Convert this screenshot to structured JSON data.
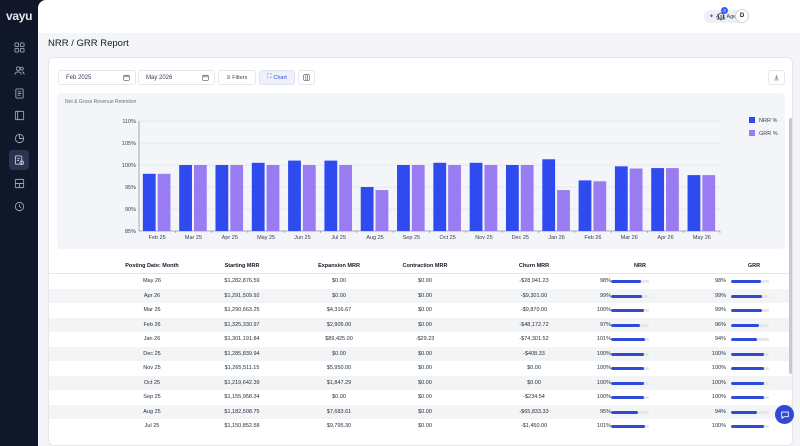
{
  "app": {
    "logo": "vayu",
    "page_title": "NRR / GRR Report"
  },
  "topbar": {
    "ask_agent_label": "Ask Agent",
    "notification_count": "4",
    "avatar_initial": "D"
  },
  "sidebar": {
    "items": [
      {
        "name": "dashboard",
        "icon": "grid-icon"
      },
      {
        "name": "customers",
        "icon": "users-icon"
      },
      {
        "name": "invoices",
        "icon": "document-icon"
      },
      {
        "name": "contracts",
        "icon": "book-icon"
      },
      {
        "name": "analytics",
        "icon": "pie-chart-icon"
      },
      {
        "name": "reports",
        "icon": "report-icon",
        "active": true
      },
      {
        "name": "products",
        "icon": "layout-icon"
      },
      {
        "name": "settings",
        "icon": "clock-icon"
      }
    ]
  },
  "toolbar": {
    "start_date": "Feb 2025",
    "end_date": "May 2026",
    "filters_label": "Filters",
    "chart_label": "Chart"
  },
  "chart_data": {
    "type": "bar",
    "title": "Net & Gross Revenue Retention",
    "categories": [
      "Feb 25",
      "Mar 25",
      "Apr 25",
      "May 25",
      "Jun 25",
      "Jul 25",
      "Aug 25",
      "Sep 25",
      "Oct 25",
      "Nov 25",
      "Dec 25",
      "Jan 26",
      "Feb 26",
      "Mar 26",
      "Apr 26",
      "May 26"
    ],
    "series": [
      {
        "name": "NRR %",
        "color": "#2f4bf0",
        "values": [
          98,
          100,
          100,
          100.5,
          101,
          101,
          95,
          100,
          100.5,
          100.5,
          100,
          101.3,
          96.5,
          99.7,
          99.3,
          97.7
        ]
      },
      {
        "name": "GRR %",
        "color": "#9a7cf2",
        "values": [
          98,
          100,
          100,
          100,
          100,
          100,
          94.3,
          100,
          100,
          100,
          100,
          94.3,
          96.3,
          99.2,
          99.3,
          97.7
        ]
      }
    ],
    "ylim": [
      85,
      110
    ],
    "yticks": [
      "85%",
      "90%",
      "95%",
      "100%",
      "105%",
      "110%"
    ],
    "ytick_values": [
      85,
      90,
      95,
      100,
      105,
      110
    ],
    "legend_position": "top-right",
    "grid": true
  },
  "table": {
    "headers": [
      "Posting Date: Month",
      "Starting MRR",
      "Expansion MRR",
      "Contraction MRR",
      "Churn MRR",
      "NRR",
      "GRR"
    ],
    "rows": [
      {
        "month": "May 26",
        "starting": "$1,282,876.59",
        "expansion": "$0.00",
        "contraction": "$0.00",
        "churn": "-$28,941.23",
        "nrr": "98%",
        "nrr_v": 0.98,
        "grr": "98%",
        "grr_v": 0.98
      },
      {
        "month": "Apr 26",
        "starting": "$1,291,509.92",
        "expansion": "$0.00",
        "contraction": "$0.00",
        "churn": "-$9,301.00",
        "nrr": "99%",
        "nrr_v": 0.99,
        "grr": "99%",
        "grr_v": 0.99
      },
      {
        "month": "Mar 26",
        "starting": "$1,290,663.25",
        "expansion": "$4,316.67",
        "contraction": "$0.00",
        "churn": "-$9,870.00",
        "nrr": "100%",
        "nrr_v": 1.0,
        "grr": "99%",
        "grr_v": 0.99
      },
      {
        "month": "Feb 26",
        "starting": "$1,325,330.97",
        "expansion": "$2,905.00",
        "contraction": "$0.00",
        "churn": "-$48,172.72",
        "nrr": "97%",
        "nrr_v": 0.97,
        "grr": "96%",
        "grr_v": 0.96
      },
      {
        "month": "Jan 26",
        "starting": "$1,301,191.84",
        "expansion": "$89,425.00",
        "contraction": "-$29.23",
        "churn": "-$74,301.52",
        "nrr": "101%",
        "nrr_v": 1.01,
        "grr": "94%",
        "grr_v": 0.94
      },
      {
        "month": "Dec 25",
        "starting": "$1,285,839.94",
        "expansion": "$0.00",
        "contraction": "$0.00",
        "churn": "-$408.33",
        "nrr": "100%",
        "nrr_v": 1.0,
        "grr": "100%",
        "grr_v": 1.0
      },
      {
        "month": "Nov 25",
        "starting": "$1,265,511.15",
        "expansion": "$5,950.00",
        "contraction": "$0.00",
        "churn": "$0.00",
        "nrr": "100%",
        "nrr_v": 1.0,
        "grr": "100%",
        "grr_v": 1.0
      },
      {
        "month": "Oct 25",
        "starting": "$1,219,642.39",
        "expansion": "$1,847.29",
        "contraction": "$0.00",
        "churn": "$0.00",
        "nrr": "100%",
        "nrr_v": 1.0,
        "grr": "100%",
        "grr_v": 1.0
      },
      {
        "month": "Sep 25",
        "starting": "$1,155,958.34",
        "expansion": "$0.00",
        "contraction": "$0.00",
        "churn": "-$234.54",
        "nrr": "100%",
        "nrr_v": 1.0,
        "grr": "100%",
        "grr_v": 1.0
      },
      {
        "month": "Aug 25",
        "starting": "$1,182,508.75",
        "expansion": "$7,683.61",
        "contraction": "$0.00",
        "churn": "-$65,833.33",
        "nrr": "95%",
        "nrr_v": 0.95,
        "grr": "94%",
        "grr_v": 0.94
      },
      {
        "month": "Jul 25",
        "starting": "$1,150,852.58",
        "expansion": "$9,795.30",
        "contraction": "$0.00",
        "churn": "-$1,450.00",
        "nrr": "101%",
        "nrr_v": 1.01,
        "grr": "100%",
        "grr_v": 1.0
      }
    ]
  },
  "colors": {
    "accent": "#2f4bd6",
    "sidebar_bg": "#0f1729",
    "page_bg": "#f3f5f9"
  }
}
